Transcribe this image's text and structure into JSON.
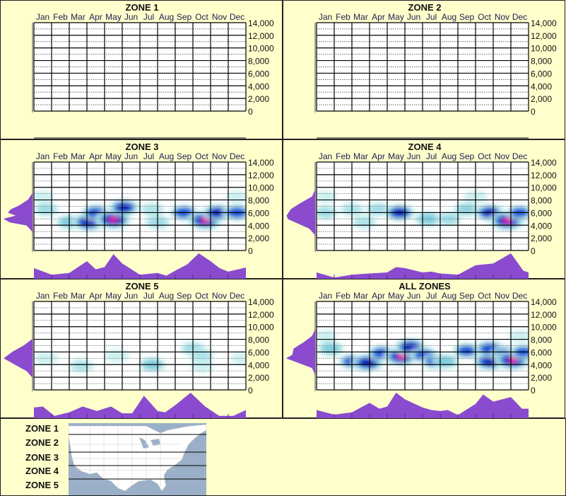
{
  "colors": {
    "background": "#ffffcc",
    "profile_fill": "#8a4bcf",
    "profile_line": "#5a2a80",
    "low": "#c8f0f0",
    "mid": "#50b8d4",
    "high": "#1048d8",
    "higher": "#0010b8",
    "peak": "#ff1090"
  },
  "chart_data": [
    {
      "type": "heatmap",
      "title": "ZONE 1",
      "months": [
        "Jan",
        "Feb",
        "Mar",
        "Apr",
        "May",
        "Jun",
        "Jul",
        "Aug",
        "Sep",
        "Oct",
        "Nov",
        "Dec"
      ],
      "y_ticks": [
        "14,000",
        "12,000",
        "10,000",
        "8,000",
        "6,000",
        "4,000",
        "2,000",
        "0"
      ],
      "ylim": [
        0,
        14000
      ],
      "grid": true,
      "blobs": [],
      "month_profile": [],
      "elevation_profile": []
    },
    {
      "type": "heatmap",
      "title": "ZONE 2",
      "months": [
        "Jan",
        "Feb",
        "Mar",
        "Apr",
        "May",
        "Jun",
        "Jul",
        "Aug",
        "Sep",
        "Oct",
        "Nov",
        "Dec"
      ],
      "y_ticks": [
        "14,000",
        "12,000",
        "10,000",
        "8,000",
        "6,000",
        "4,000",
        "2,000",
        "0"
      ],
      "ylim": [
        0,
        14000
      ],
      "grid": true,
      "blobs": [],
      "month_profile": [],
      "elevation_profile": []
    },
    {
      "type": "heatmap",
      "title": "ZONE 3",
      "months": [
        "Jan",
        "Feb",
        "Mar",
        "Apr",
        "May",
        "Jun",
        "Jul",
        "Aug",
        "Sep",
        "Oct",
        "Nov",
        "Dec"
      ],
      "y_ticks": [
        "14,000",
        "12,000",
        "10,000",
        "8,000",
        "6,000",
        "4,000",
        "2,000",
        "0"
      ],
      "ylim": [
        0,
        14000
      ],
      "grid": true,
      "blobs": [
        [
          1.2,
          6500,
          0.35
        ],
        [
          1,
          8500,
          0.15
        ],
        [
          2.5,
          4500,
          0.45
        ],
        [
          3.6,
          4500,
          0.85
        ],
        [
          4,
          6000,
          0.6
        ],
        [
          5,
          4900,
          1.0
        ],
        [
          5.6,
          6800,
          0.7
        ],
        [
          7.2,
          6500,
          0.3
        ],
        [
          7.5,
          4500,
          0.35
        ],
        [
          9,
          6000,
          0.6
        ],
        [
          10.2,
          4800,
          1.0
        ],
        [
          10.9,
          6000,
          0.7
        ],
        [
          12,
          6000,
          0.6
        ],
        [
          12,
          8500,
          0.15
        ]
      ],
      "month_profile": [
        [
          0,
          0.42
        ],
        [
          1,
          0.16
        ],
        [
          2,
          0.23
        ],
        [
          2.5,
          0.46
        ],
        [
          3,
          0.69
        ],
        [
          3.5,
          0.37
        ],
        [
          4,
          0.46
        ],
        [
          4.5,
          0.97
        ],
        [
          5,
          0.6
        ],
        [
          6,
          0.16
        ],
        [
          7,
          0.23
        ],
        [
          7.5,
          0.12
        ],
        [
          8,
          0.32
        ],
        [
          8.67,
          0.56
        ],
        [
          9.33,
          1.0
        ],
        [
          10,
          0.69
        ],
        [
          10.5,
          0.42
        ],
        [
          11,
          0.28
        ],
        [
          12,
          0.44
        ]
      ],
      "elevation_profile": [
        [
          9000,
          0
        ],
        [
          8000,
          0.15
        ],
        [
          7000,
          0.5
        ],
        [
          6500,
          0.75
        ],
        [
          6000,
          0.85
        ],
        [
          5500,
          0.55
        ],
        [
          5000,
          1.0
        ],
        [
          4500,
          0.8
        ],
        [
          4000,
          0.2
        ],
        [
          3000,
          0
        ]
      ]
    },
    {
      "type": "heatmap",
      "title": "ZONE 4",
      "months": [
        "Jan",
        "Feb",
        "Mar",
        "Apr",
        "May",
        "Jun",
        "Jul",
        "Aug",
        "Sep",
        "Oct",
        "Nov",
        "Dec"
      ],
      "y_ticks": [
        "14,000",
        "12,000",
        "10,000",
        "8,000",
        "6,000",
        "4,000",
        "2,000",
        "0"
      ],
      "ylim": [
        0,
        14000
      ],
      "grid": true,
      "blobs": [
        [
          1,
          6000,
          0.35
        ],
        [
          2.5,
          6500,
          0.3
        ],
        [
          3.2,
          4500,
          0.3
        ],
        [
          4,
          6500,
          0.35
        ],
        [
          5.2,
          6000,
          0.7
        ],
        [
          6.8,
          5000,
          0.45
        ],
        [
          8,
          5000,
          0.35
        ],
        [
          9,
          6500,
          0.4
        ],
        [
          10.3,
          6000,
          0.7
        ],
        [
          11.3,
          4700,
          1.0
        ],
        [
          12,
          6000,
          0.5
        ],
        [
          1,
          8500,
          0.15
        ],
        [
          9.5,
          8500,
          0.2
        ]
      ],
      "month_profile": [
        [
          0,
          0.25
        ],
        [
          1,
          0.05
        ],
        [
          2,
          0.16
        ],
        [
          3,
          0.21
        ],
        [
          4,
          0.25
        ],
        [
          4.5,
          0.46
        ],
        [
          5,
          0.42
        ],
        [
          6,
          0.25
        ],
        [
          6.5,
          0.28
        ],
        [
          7,
          0.21
        ],
        [
          8,
          0.16
        ],
        [
          9,
          0.53
        ],
        [
          10,
          0.6
        ],
        [
          11,
          1.0
        ],
        [
          11.7,
          0.32
        ],
        [
          12,
          0.25
        ]
      ],
      "elevation_profile": [
        [
          9500,
          0
        ],
        [
          8500,
          0.1
        ],
        [
          7500,
          0.5
        ],
        [
          6500,
          0.85
        ],
        [
          5500,
          1.0
        ],
        [
          5000,
          0.95
        ],
        [
          4500,
          0.7
        ],
        [
          3500,
          0.2
        ],
        [
          2500,
          0
        ]
      ]
    },
    {
      "type": "heatmap",
      "title": "ZONE 5",
      "months": [
        "Jan",
        "Feb",
        "Mar",
        "Apr",
        "May",
        "Jun",
        "Jul",
        "Aug",
        "Sep",
        "Oct",
        "Nov",
        "Dec"
      ],
      "y_ticks": [
        "14,000",
        "12,000",
        "10,000",
        "8,000",
        "6,000",
        "4,000",
        "2,000",
        "0"
      ],
      "ylim": [
        0,
        14000
      ],
      "grid": true,
      "blobs": [
        [
          1.2,
          5000,
          0.25
        ],
        [
          3.2,
          3800,
          0.3
        ],
        [
          5.2,
          5400,
          0.25
        ],
        [
          7.2,
          4000,
          0.45
        ],
        [
          9.5,
          6500,
          0.35
        ],
        [
          10,
          5500,
          0.3
        ],
        [
          10,
          3800,
          0.2
        ],
        [
          12.3,
          5000,
          0.2
        ]
      ],
      "month_profile": [
        [
          0,
          0.42
        ],
        [
          0.5,
          0.46
        ],
        [
          1.16,
          0.09
        ],
        [
          2,
          0.23
        ],
        [
          2.76,
          0.46
        ],
        [
          3.56,
          0.28
        ],
        [
          4.36,
          0.46
        ],
        [
          5,
          0.19
        ],
        [
          5.56,
          0.19
        ],
        [
          6.23,
          0.88
        ],
        [
          7,
          0.28
        ],
        [
          7.43,
          0.23
        ],
        [
          8,
          0.51
        ],
        [
          8.87,
          1.0
        ],
        [
          9.69,
          0.46
        ],
        [
          10.49,
          0.09
        ],
        [
          11.29,
          0.09
        ],
        [
          12,
          0.32
        ]
      ],
      "elevation_profile": [
        [
          8000,
          0
        ],
        [
          7000,
          0.3
        ],
        [
          6000,
          0.7
        ],
        [
          5000,
          1.0
        ],
        [
          4000,
          0.6
        ],
        [
          3000,
          0.2
        ],
        [
          2000,
          0
        ]
      ]
    },
    {
      "type": "heatmap",
      "title": "ALL ZONES",
      "months": [
        "Jan",
        "Feb",
        "Mar",
        "Apr",
        "May",
        "Jun",
        "Jul",
        "Aug",
        "Sep",
        "Oct",
        "Nov",
        "Dec"
      ],
      "y_ticks": [
        "14,000",
        "12,000",
        "10,000",
        "8,000",
        "6,000",
        "4,000",
        "2,000",
        "0"
      ],
      "ylim": [
        0,
        14000
      ],
      "grid": true,
      "blobs": [
        [
          1.3,
          6500,
          0.45
        ],
        [
          1,
          8500,
          0.15
        ],
        [
          2.5,
          4500,
          0.5
        ],
        [
          3.4,
          4300,
          0.8
        ],
        [
          4.2,
          5800,
          0.6
        ],
        [
          5.3,
          5300,
          0.95
        ],
        [
          5.8,
          6800,
          0.75
        ],
        [
          6.6,
          5500,
          0.6
        ],
        [
          7.2,
          4500,
          0.5
        ],
        [
          7.8,
          4500,
          0.45
        ],
        [
          9,
          6200,
          0.55
        ],
        [
          10.3,
          4500,
          0.8
        ],
        [
          10.3,
          6500,
          0.65
        ],
        [
          11.2,
          5700,
          0.6
        ],
        [
          11.6,
          4700,
          1.0
        ],
        [
          12.2,
          6000,
          0.5
        ],
        [
          12,
          8500,
          0.15
        ]
      ],
      "month_profile": [
        [
          0,
          0.32
        ],
        [
          1,
          0.14
        ],
        [
          2,
          0.23
        ],
        [
          3,
          0.6
        ],
        [
          3.56,
          0.37
        ],
        [
          4,
          0.46
        ],
        [
          4.5,
          1.0
        ],
        [
          5,
          0.74
        ],
        [
          6,
          0.42
        ],
        [
          6.5,
          0.32
        ],
        [
          7,
          0.28
        ],
        [
          7.43,
          0.32
        ],
        [
          8,
          0.12
        ],
        [
          9,
          0.56
        ],
        [
          9.43,
          0.93
        ],
        [
          10,
          0.65
        ],
        [
          11,
          0.83
        ],
        [
          11.63,
          0.37
        ],
        [
          12,
          0.37
        ]
      ],
      "elevation_profile": [
        [
          9500,
          0
        ],
        [
          8500,
          0.1
        ],
        [
          7500,
          0.4
        ],
        [
          6500,
          0.75
        ],
        [
          5500,
          0.8
        ],
        [
          5000,
          1.0
        ],
        [
          4500,
          0.7
        ],
        [
          3500,
          0.1
        ],
        [
          2500,
          0
        ]
      ]
    }
  ],
  "legend": {
    "zones": [
      "ZONE 1",
      "ZONE 2",
      "ZONE 3",
      "ZONE 4",
      "ZONE 5"
    ]
  }
}
